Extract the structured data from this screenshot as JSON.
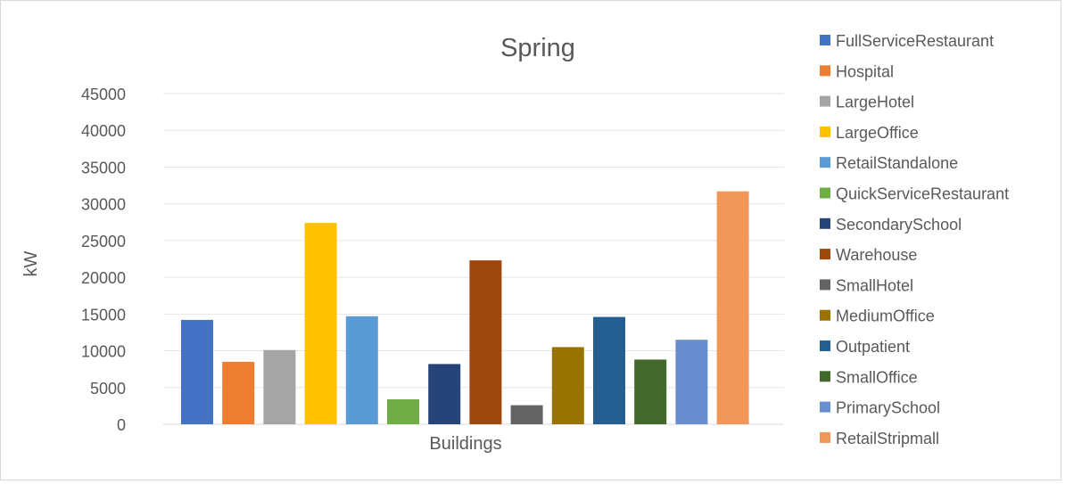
{
  "chart_data": {
    "type": "bar",
    "title": "Spring",
    "xlabel": "Buildings",
    "ylabel": "kW",
    "ylim": [
      0,
      45000
    ],
    "ytick_step": 5000,
    "grid": true,
    "legend_position": "right",
    "categories": [
      ""
    ],
    "series": [
      {
        "name": "FullServiceRestaurant",
        "values": [
          14200
        ],
        "color": "#4472C4"
      },
      {
        "name": "Hospital",
        "values": [
          8500
        ],
        "color": "#ED7D31"
      },
      {
        "name": "LargeHotel",
        "values": [
          10100
        ],
        "color": "#A5A5A5"
      },
      {
        "name": "LargeOffice",
        "values": [
          27400
        ],
        "color": "#FFC000"
      },
      {
        "name": "RetailStandalone",
        "values": [
          14700
        ],
        "color": "#5B9BD5"
      },
      {
        "name": "QuickServiceRestaurant",
        "values": [
          3400
        ],
        "color": "#70AD47"
      },
      {
        "name": "SecondarySchool",
        "values": [
          8200
        ],
        "color": "#264478"
      },
      {
        "name": "Warehouse",
        "values": [
          22300
        ],
        "color": "#9E480E"
      },
      {
        "name": "SmallHotel",
        "values": [
          2600
        ],
        "color": "#636363"
      },
      {
        "name": "MediumOffice",
        "values": [
          10500
        ],
        "color": "#997300"
      },
      {
        "name": "Outpatient",
        "values": [
          14600
        ],
        "color": "#255E91"
      },
      {
        "name": "SmallOffice",
        "values": [
          8800
        ],
        "color": "#43682B"
      },
      {
        "name": "PrimarySchool",
        "values": [
          11500
        ],
        "color": "#698ED0"
      },
      {
        "name": "RetailStripmall",
        "values": [
          31700
        ],
        "color": "#F1975A"
      }
    ]
  }
}
